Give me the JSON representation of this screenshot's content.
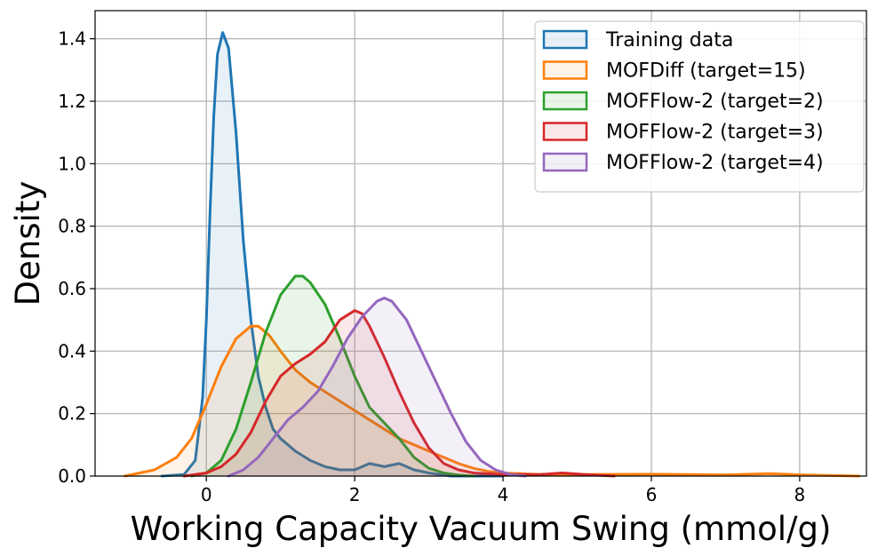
{
  "chart_data": {
    "type": "area",
    "xlabel": "Working Capacity Vacuum Swing (mmol/g)",
    "ylabel": "Density",
    "xlim": [
      -1.5,
      8.9
    ],
    "ylim": [
      0,
      1.49
    ],
    "xticks": [
      0,
      2,
      4,
      6,
      8
    ],
    "yticks": [
      0.0,
      0.2,
      0.4,
      0.6,
      0.8,
      1.0,
      1.2,
      1.4
    ],
    "grid": true,
    "legend_position": "top-right",
    "series": [
      {
        "name": "Training data",
        "color": "#1f77b4",
        "points": [
          [
            -0.6,
            0
          ],
          [
            -0.3,
            0.005
          ],
          [
            -0.15,
            0.05
          ],
          [
            -0.05,
            0.25
          ],
          [
            0,
            0.5
          ],
          [
            0.05,
            0.85
          ],
          [
            0.1,
            1.15
          ],
          [
            0.15,
            1.35
          ],
          [
            0.22,
            1.42
          ],
          [
            0.3,
            1.37
          ],
          [
            0.4,
            1.1
          ],
          [
            0.5,
            0.75
          ],
          [
            0.6,
            0.5
          ],
          [
            0.7,
            0.32
          ],
          [
            0.8,
            0.22
          ],
          [
            0.9,
            0.15
          ],
          [
            1.0,
            0.12
          ],
          [
            1.1,
            0.1
          ],
          [
            1.2,
            0.08
          ],
          [
            1.4,
            0.05
          ],
          [
            1.6,
            0.03
          ],
          [
            1.8,
            0.02
          ],
          [
            2.0,
            0.02
          ],
          [
            2.2,
            0.04
          ],
          [
            2.4,
            0.03
          ],
          [
            2.6,
            0.04
          ],
          [
            2.8,
            0.02
          ],
          [
            3.0,
            0.01
          ],
          [
            3.3,
            0
          ],
          [
            4.0,
            0
          ]
        ]
      },
      {
        "name": "MOFDiff (target=15)",
        "color": "#ff7f0e",
        "points": [
          [
            -1.1,
            0
          ],
          [
            -0.7,
            0.02
          ],
          [
            -0.4,
            0.06
          ],
          [
            -0.2,
            0.12
          ],
          [
            0,
            0.23
          ],
          [
            0.2,
            0.35
          ],
          [
            0.4,
            0.44
          ],
          [
            0.6,
            0.48
          ],
          [
            0.7,
            0.48
          ],
          [
            0.85,
            0.45
          ],
          [
            1.0,
            0.4
          ],
          [
            1.2,
            0.34
          ],
          [
            1.4,
            0.3
          ],
          [
            1.6,
            0.27
          ],
          [
            1.8,
            0.24
          ],
          [
            2.0,
            0.21
          ],
          [
            2.2,
            0.18
          ],
          [
            2.4,
            0.15
          ],
          [
            2.6,
            0.12
          ],
          [
            2.8,
            0.1
          ],
          [
            3.0,
            0.08
          ],
          [
            3.2,
            0.06
          ],
          [
            3.4,
            0.04
          ],
          [
            3.6,
            0.025
          ],
          [
            3.8,
            0.015
          ],
          [
            4.0,
            0.01
          ],
          [
            4.5,
            0.005
          ],
          [
            5.0,
            0.005
          ],
          [
            6.0,
            0.006
          ],
          [
            7.0,
            0.004
          ],
          [
            7.6,
            0.008
          ],
          [
            8.0,
            0.004
          ],
          [
            8.8,
            0
          ]
        ]
      },
      {
        "name": "MOFFlow-2 (target=2)",
        "color": "#2ca02c",
        "points": [
          [
            -0.2,
            0
          ],
          [
            0,
            0.01
          ],
          [
            0.2,
            0.05
          ],
          [
            0.4,
            0.15
          ],
          [
            0.6,
            0.3
          ],
          [
            0.8,
            0.46
          ],
          [
            1.0,
            0.58
          ],
          [
            1.2,
            0.64
          ],
          [
            1.3,
            0.64
          ],
          [
            1.4,
            0.62
          ],
          [
            1.6,
            0.55
          ],
          [
            1.8,
            0.44
          ],
          [
            2.0,
            0.32
          ],
          [
            2.2,
            0.22
          ],
          [
            2.4,
            0.17
          ],
          [
            2.6,
            0.12
          ],
          [
            2.8,
            0.06
          ],
          [
            3.0,
            0.025
          ],
          [
            3.2,
            0.01
          ],
          [
            3.4,
            0.003
          ],
          [
            3.6,
            0
          ]
        ]
      },
      {
        "name": "MOFFlow-2 (target=3)",
        "color": "#d62728",
        "points": [
          [
            -0.3,
            0
          ],
          [
            0,
            0.01
          ],
          [
            0.2,
            0.03
          ],
          [
            0.4,
            0.07
          ],
          [
            0.6,
            0.14
          ],
          [
            0.8,
            0.24
          ],
          [
            1.0,
            0.32
          ],
          [
            1.2,
            0.36
          ],
          [
            1.4,
            0.39
          ],
          [
            1.6,
            0.43
          ],
          [
            1.8,
            0.5
          ],
          [
            2.0,
            0.53
          ],
          [
            2.1,
            0.52
          ],
          [
            2.2,
            0.48
          ],
          [
            2.4,
            0.38
          ],
          [
            2.6,
            0.27
          ],
          [
            2.8,
            0.17
          ],
          [
            3.0,
            0.09
          ],
          [
            3.2,
            0.04
          ],
          [
            3.4,
            0.02
          ],
          [
            3.6,
            0.01
          ],
          [
            4.0,
            0.005
          ],
          [
            4.5,
            0.005
          ],
          [
            4.8,
            0.01
          ],
          [
            5.1,
            0.005
          ],
          [
            5.5,
            0
          ]
        ]
      },
      {
        "name": "MOFFlow-2 (target=4)",
        "color": "#9467bd",
        "points": [
          [
            0.3,
            0
          ],
          [
            0.5,
            0.02
          ],
          [
            0.7,
            0.06
          ],
          [
            0.9,
            0.12
          ],
          [
            1.1,
            0.18
          ],
          [
            1.3,
            0.22
          ],
          [
            1.5,
            0.27
          ],
          [
            1.7,
            0.35
          ],
          [
            1.9,
            0.44
          ],
          [
            2.1,
            0.51
          ],
          [
            2.3,
            0.56
          ],
          [
            2.4,
            0.57
          ],
          [
            2.5,
            0.56
          ],
          [
            2.7,
            0.5
          ],
          [
            2.9,
            0.4
          ],
          [
            3.1,
            0.3
          ],
          [
            3.3,
            0.2
          ],
          [
            3.5,
            0.11
          ],
          [
            3.7,
            0.05
          ],
          [
            3.9,
            0.02
          ],
          [
            4.1,
            0.005
          ],
          [
            4.3,
            0
          ]
        ]
      }
    ]
  }
}
